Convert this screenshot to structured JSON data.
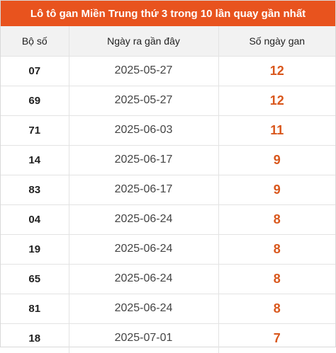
{
  "title": "Lô tô gan Miền Trung thứ 3 trong 10 lần quay gần nhất",
  "columns": [
    "Bộ số",
    "Ngày ra gần đây",
    "Số ngày gan"
  ],
  "rows": [
    {
      "number": "07",
      "date": "2025-05-27",
      "days": "12"
    },
    {
      "number": "69",
      "date": "2025-05-27",
      "days": "12"
    },
    {
      "number": "71",
      "date": "2025-06-03",
      "days": "11"
    },
    {
      "number": "14",
      "date": "2025-06-17",
      "days": "9"
    },
    {
      "number": "83",
      "date": "2025-06-17",
      "days": "9"
    },
    {
      "number": "04",
      "date": "2025-06-24",
      "days": "8"
    },
    {
      "number": "19",
      "date": "2025-06-24",
      "days": "8"
    },
    {
      "number": "65",
      "date": "2025-06-24",
      "days": "8"
    },
    {
      "number": "81",
      "date": "2025-06-24",
      "days": "8"
    },
    {
      "number": "18",
      "date": "2025-07-01",
      "days": "7"
    }
  ],
  "colors": {
    "header_bg": "#e8531e",
    "gan_value": "#d9571c"
  }
}
